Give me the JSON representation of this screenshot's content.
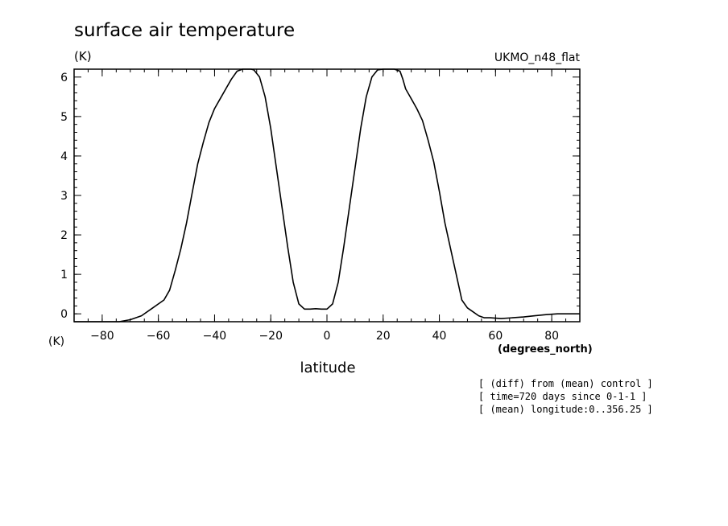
{
  "chart_data": {
    "type": "line",
    "title": "surface air temperature",
    "y_unit_top": "(K)",
    "y_unit_bottom": "(K)",
    "model_label": "UKMO_n48_flat",
    "xlabel": "latitude",
    "x_unit": "(degrees_north)",
    "xlim": [
      -90,
      90
    ],
    "ylim": [
      -0.2,
      6.2
    ],
    "x_ticks": [
      -80,
      -60,
      -40,
      -20,
      0,
      20,
      40,
      60,
      80
    ],
    "x_tick_labels": [
      "−80",
      "−60",
      "−40",
      "−20",
      "0",
      "20",
      "40",
      "60",
      "80"
    ],
    "y_ticks": [
      0,
      1,
      2,
      3,
      4,
      5,
      6
    ],
    "y_tick_labels": [
      "0",
      "1",
      "2",
      "3",
      "4",
      "5",
      "6"
    ],
    "grid": false,
    "notes": [
      "[ (diff) from (mean) control ]",
      "[ time=720 days since 0-1-1 ]",
      "[ (mean) longitude:0..356.25 ]"
    ],
    "series": [
      {
        "x": [
          -90,
          -86,
          -82,
          -78,
          -74,
          -70,
          -66,
          -62,
          -58,
          -56,
          -54,
          -52,
          -50,
          -48,
          -46,
          -44,
          -42,
          -40,
          -38,
          -36,
          -34,
          -32,
          -30,
          -28,
          -27,
          -26,
          -24,
          -22,
          -20,
          -18,
          -16,
          -14,
          -12,
          -10,
          -8,
          -6,
          -4,
          -2,
          0,
          2,
          4,
          6,
          8,
          10,
          12,
          14,
          16,
          18,
          20,
          22,
          24,
          26,
          27,
          28,
          30,
          32,
          34,
          36,
          38,
          40,
          42,
          44,
          46,
          48,
          50,
          52,
          54,
          56,
          58,
          62,
          66,
          70,
          74,
          78,
          82,
          86,
          90
        ],
        "y": [
          -0.2,
          -0.2,
          -0.2,
          -0.2,
          -0.2,
          -0.15,
          -0.05,
          0.15,
          0.35,
          0.6,
          1.1,
          1.65,
          2.3,
          3.05,
          3.8,
          4.35,
          4.85,
          5.2,
          5.45,
          5.7,
          5.95,
          6.15,
          6.2,
          6.2,
          6.2,
          6.18,
          6.0,
          5.5,
          4.7,
          3.7,
          2.7,
          1.7,
          0.8,
          0.25,
          0.12,
          0.12,
          0.13,
          0.12,
          0.12,
          0.25,
          0.8,
          1.7,
          2.7,
          3.7,
          4.7,
          5.5,
          6.0,
          6.18,
          6.2,
          6.2,
          6.2,
          6.15,
          5.95,
          5.7,
          5.45,
          5.2,
          4.9,
          4.4,
          3.85,
          3.1,
          2.3,
          1.65,
          1.0,
          0.35,
          0.15,
          0.05,
          -0.05,
          -0.1,
          -0.1,
          -0.12,
          -0.1,
          -0.08,
          -0.05,
          -0.02,
          0.0,
          0.0,
          0.0
        ]
      }
    ]
  }
}
